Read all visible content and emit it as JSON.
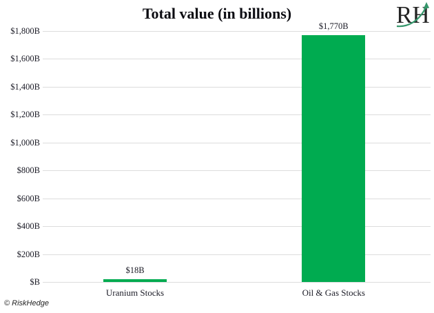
{
  "header": {
    "logo_text": "RH"
  },
  "footer": {
    "credit": "© RiskHedge"
  },
  "chart_data": {
    "type": "bar",
    "title": "Total value (in billions)",
    "categories": [
      "Uranium Stocks",
      "Oil & Gas Stocks"
    ],
    "values": [
      18,
      1770
    ],
    "data_labels": [
      "$18B",
      "$1,770B"
    ],
    "xlabel": "",
    "ylabel": "",
    "ylim": [
      0,
      1800
    ],
    "ytick_interval": 200,
    "ytick_labels": [
      "$B",
      "$200B",
      "$400B",
      "$600B",
      "$800B",
      "$1,000B",
      "$1,200B",
      "$1,400B",
      "$1,600B",
      "$1,800B"
    ],
    "grid": "horizontal",
    "legend": "none",
    "colors": {
      "bar": "#00ab50",
      "gridline": "#dcdcdc",
      "text": "#1b1b26",
      "logo_letters": "#232323",
      "logo_arrow": "#35966b"
    }
  }
}
